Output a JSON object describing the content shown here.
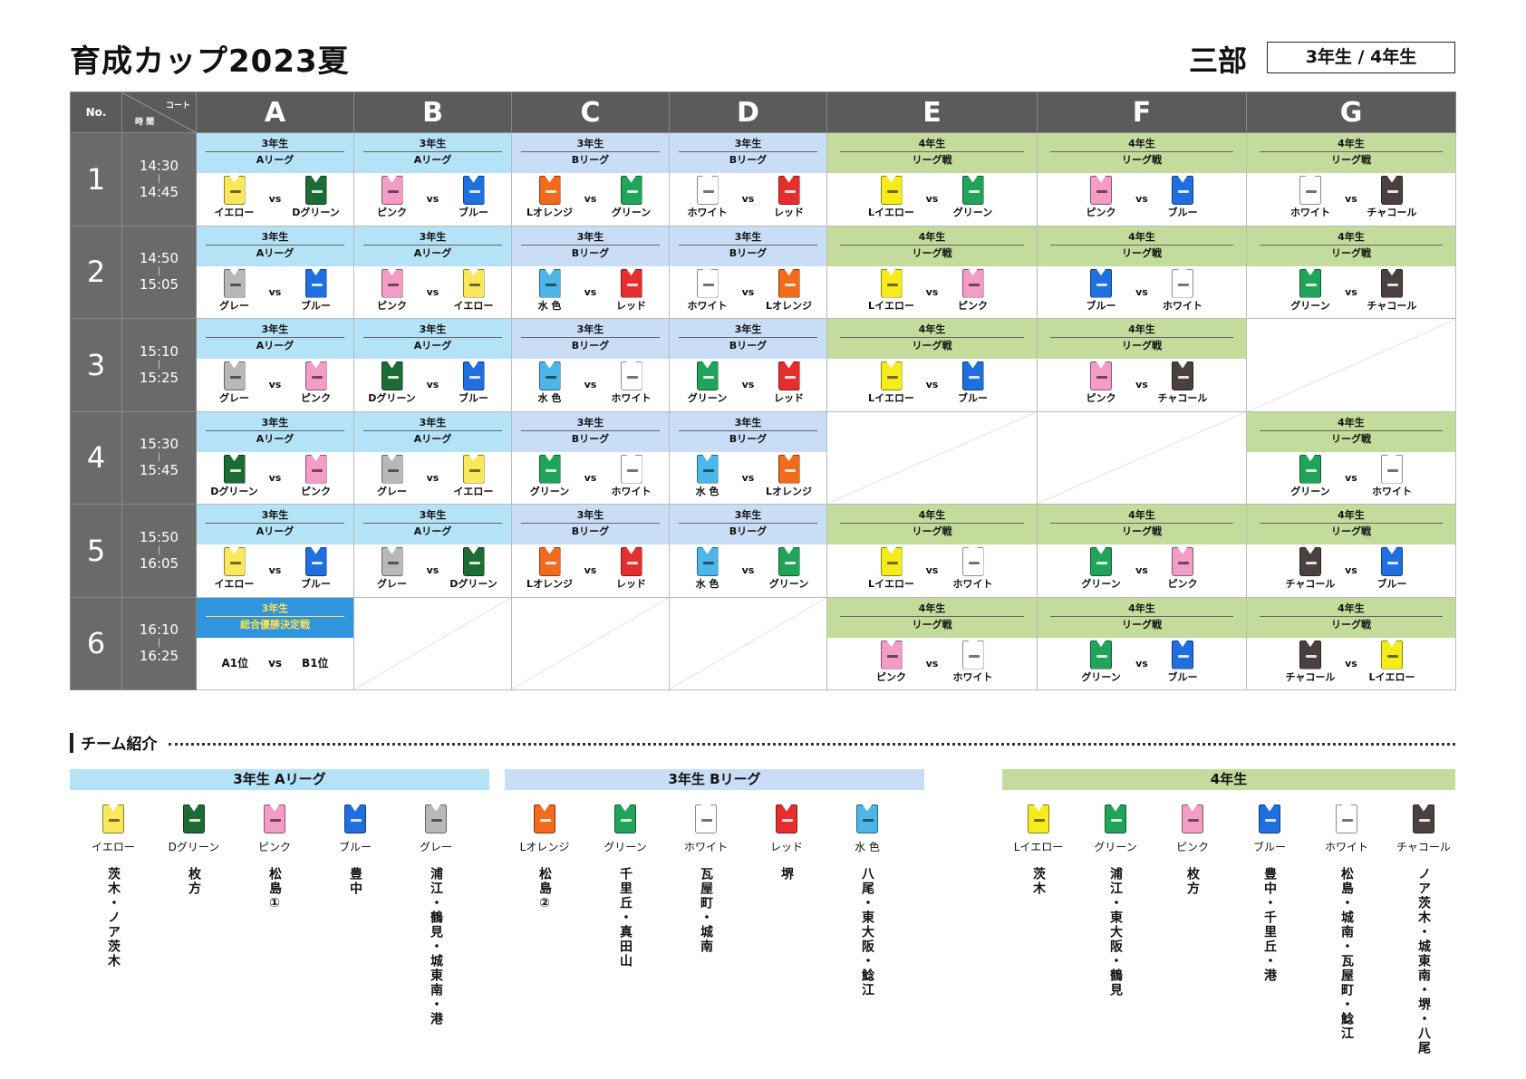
{
  "header": {
    "title": "育成カップ2023夏",
    "division": "三部",
    "grades": "3年生 / 4年生"
  },
  "table": {
    "no_label": "No.",
    "court_label": "コート",
    "time_label": "時 間",
    "courts": [
      "A",
      "B",
      "C",
      "D",
      "E",
      "F",
      "G"
    ],
    "vs": "vs",
    "time_separator": "|"
  },
  "colors": {
    "イエロー": "#f9e85c",
    "Dグリーン": "#1d6b35",
    "ピンク": "#f39cc6",
    "ブルー": "#1f6fe0",
    "グレー": "#b8b8b8",
    "Lオレンジ": "#f26a1b",
    "グリーン": "#20a45a",
    "ホワイト": "#ffffff",
    "レッド": "#e62e2e",
    "水 色": "#4bb6e8",
    "Lイエロー": "#f6ec1a",
    "チャコール": "#4a4040"
  },
  "rounds": [
    {
      "no": "1",
      "start": "14:30",
      "end": "14:45",
      "matches": [
        {
          "grade": "3年生",
          "league": "Aリーグ",
          "bg": "A",
          "home": "イエロー",
          "away": "Dグリーン"
        },
        {
          "grade": "3年生",
          "league": "Aリーグ",
          "bg": "A",
          "home": "ピンク",
          "away": "ブルー"
        },
        {
          "grade": "3年生",
          "league": "Bリーグ",
          "bg": "B",
          "home": "Lオレンジ",
          "away": "グリーン"
        },
        {
          "grade": "3年生",
          "league": "Bリーグ",
          "bg": "B",
          "home": "ホワイト",
          "away": "レッド"
        },
        {
          "grade": "4年生",
          "league": "リーグ戦",
          "bg": "G",
          "home": "Lイエロー",
          "away": "グリーン"
        },
        {
          "grade": "4年生",
          "league": "リーグ戦",
          "bg": "G",
          "home": "ピンク",
          "away": "ブルー"
        },
        {
          "grade": "4年生",
          "league": "リーグ戦",
          "bg": "G",
          "home": "ホワイト",
          "away": "チャコール"
        }
      ]
    },
    {
      "no": "2",
      "start": "14:50",
      "end": "15:05",
      "matches": [
        {
          "grade": "3年生",
          "league": "Aリーグ",
          "bg": "A",
          "home": "グレー",
          "away": "ブルー"
        },
        {
          "grade": "3年生",
          "league": "Aリーグ",
          "bg": "A",
          "home": "ピンク",
          "away": "イエロー"
        },
        {
          "grade": "3年生",
          "league": "Bリーグ",
          "bg": "B",
          "home": "水 色",
          "away": "レッド"
        },
        {
          "grade": "3年生",
          "league": "Bリーグ",
          "bg": "B",
          "home": "ホワイト",
          "away": "Lオレンジ"
        },
        {
          "grade": "4年生",
          "league": "リーグ戦",
          "bg": "G",
          "home": "Lイエロー",
          "away": "ピンク"
        },
        {
          "grade": "4年生",
          "league": "リーグ戦",
          "bg": "G",
          "home": "ブルー",
          "away": "ホワイト"
        },
        {
          "grade": "4年生",
          "league": "リーグ戦",
          "bg": "G",
          "home": "グリーン",
          "away": "チャコール"
        }
      ]
    },
    {
      "no": "3",
      "start": "15:10",
      "end": "15:25",
      "matches": [
        {
          "grade": "3年生",
          "league": "Aリーグ",
          "bg": "A",
          "home": "グレー",
          "away": "ピンク"
        },
        {
          "grade": "3年生",
          "league": "Aリーグ",
          "bg": "A",
          "home": "Dグリーン",
          "away": "ブルー"
        },
        {
          "grade": "3年生",
          "league": "Bリーグ",
          "bg": "B",
          "home": "水 色",
          "away": "ホワイト"
        },
        {
          "grade": "3年生",
          "league": "Bリーグ",
          "bg": "B",
          "home": "グリーン",
          "away": "レッド"
        },
        {
          "grade": "4年生",
          "league": "リーグ戦",
          "bg": "G",
          "home": "Lイエロー",
          "away": "ブルー"
        },
        {
          "grade": "4年生",
          "league": "リーグ戦",
          "bg": "G",
          "home": "ピンク",
          "away": "チャコール"
        },
        null
      ]
    },
    {
      "no": "4",
      "start": "15:30",
      "end": "15:45",
      "matches": [
        {
          "grade": "3年生",
          "league": "Aリーグ",
          "bg": "A",
          "home": "Dグリーン",
          "away": "ピンク"
        },
        {
          "grade": "3年生",
          "league": "Aリーグ",
          "bg": "A",
          "home": "グレー",
          "away": "イエロー"
        },
        {
          "grade": "3年生",
          "league": "Bリーグ",
          "bg": "B",
          "home": "グリーン",
          "away": "ホワイト"
        },
        {
          "grade": "3年生",
          "league": "Bリーグ",
          "bg": "B",
          "home": "水 色",
          "away": "Lオレンジ"
        },
        null,
        null,
        {
          "grade": "4年生",
          "league": "リーグ戦",
          "bg": "G",
          "home": "グリーン",
          "away": "ホワイト"
        }
      ]
    },
    {
      "no": "5",
      "start": "15:50",
      "end": "16:05",
      "matches": [
        {
          "grade": "3年生",
          "league": "Aリーグ",
          "bg": "A",
          "home": "イエロー",
          "away": "ブルー"
        },
        {
          "grade": "3年生",
          "league": "Aリーグ",
          "bg": "A",
          "home": "グレー",
          "away": "Dグリーン"
        },
        {
          "grade": "3年生",
          "league": "Bリーグ",
          "bg": "B",
          "home": "Lオレンジ",
          "away": "レッド"
        },
        {
          "grade": "3年生",
          "league": "Bリーグ",
          "bg": "B",
          "home": "水 色",
          "away": "グリーン"
        },
        {
          "grade": "4年生",
          "league": "リーグ戦",
          "bg": "G",
          "home": "Lイエロー",
          "away": "ホワイト"
        },
        {
          "grade": "4年生",
          "league": "リーグ戦",
          "bg": "G",
          "home": "グリーン",
          "away": "ピンク"
        },
        {
          "grade": "4年生",
          "league": "リーグ戦",
          "bg": "G",
          "home": "チャコール",
          "away": "ブルー"
        }
      ]
    },
    {
      "no": "6",
      "start": "16:10",
      "end": "16:25",
      "matches": [
        {
          "grade": "3年生",
          "league": "総合優勝決定戦",
          "bg": "F",
          "home": "A1位",
          "away": "B1位",
          "text_only": true
        },
        null,
        null,
        null,
        {
          "grade": "4年生",
          "league": "リーグ戦",
          "bg": "G",
          "home": "ピンク",
          "away": "ホワイト"
        },
        {
          "grade": "4年生",
          "league": "リーグ戦",
          "bg": "G",
          "home": "グリーン",
          "away": "ブルー"
        },
        {
          "grade": "4年生",
          "league": "リーグ戦",
          "bg": "G",
          "home": "チャコール",
          "away": "Lイエロー"
        }
      ]
    }
  ],
  "intro": {
    "title": "チーム紹介",
    "groups": [
      {
        "name": "3年生 Aリーグ",
        "bg": "#b4e2f6",
        "teams": [
          {
            "name": "イエロー",
            "loc": "茨木・ノア茨木"
          },
          {
            "name": "Dグリーン",
            "loc": "枚方"
          },
          {
            "name": "ピンク",
            "loc": "松島①"
          },
          {
            "name": "ブルー",
            "loc": "豊中"
          },
          {
            "name": "グレー",
            "loc": "浦江・鶴見・城東南・港"
          }
        ]
      },
      {
        "name": "3年生 Bリーグ",
        "bg": "#c9ddf7",
        "teams": [
          {
            "name": "Lオレンジ",
            "loc": "松島②"
          },
          {
            "name": "グリーン",
            "loc": "千里丘・真田山"
          },
          {
            "name": "ホワイト",
            "loc": "瓦屋町・城南"
          },
          {
            "name": "レッド",
            "loc": "堺"
          },
          {
            "name": "水 色",
            "loc": "八尾・東大阪・鯰江"
          }
        ]
      },
      {
        "name": "4年生",
        "bg": "#c3dc9b",
        "teams": [
          {
            "name": "Lイエロー",
            "loc": "茨木"
          },
          {
            "name": "グリーン",
            "loc": "浦江・東大阪・鶴見"
          },
          {
            "name": "ピンク",
            "loc": "枚方"
          },
          {
            "name": "ブルー",
            "loc": "豊中・千里丘・港"
          },
          {
            "name": "ホワイト",
            "loc": "松島・城南・瓦屋町・鯰江"
          },
          {
            "name": "チャコール",
            "loc": "ノア茨木・城東南・堺・八尾"
          }
        ]
      }
    ]
  }
}
